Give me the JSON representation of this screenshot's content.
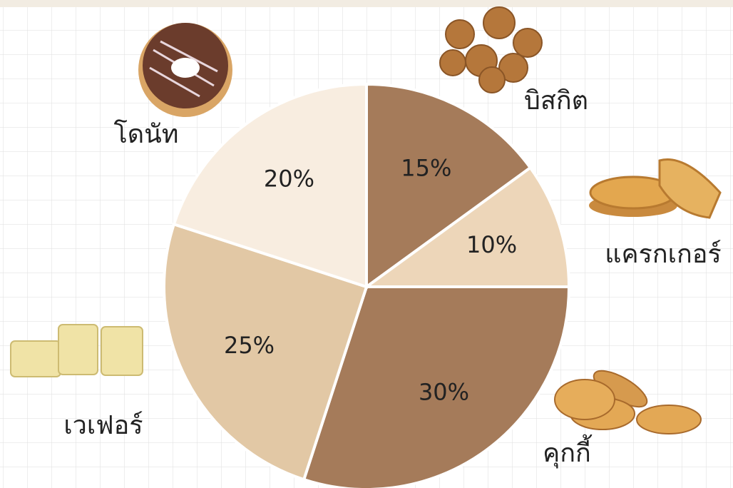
{
  "chart_data": {
    "type": "pie",
    "categories": [
      "บิสกิต",
      "แครกเกอร์",
      "คุกกี้",
      "เวเฟอร์",
      "โดนัท"
    ],
    "values": [
      15,
      10,
      30,
      25,
      20
    ],
    "value_labels": [
      "15%",
      "10%",
      "30%",
      "25%",
      "20%"
    ],
    "colors": [
      "#a57b5a",
      "#edd6b9",
      "#a57b5a",
      "#e2c8a5",
      "#f8ede0"
    ]
  }
}
